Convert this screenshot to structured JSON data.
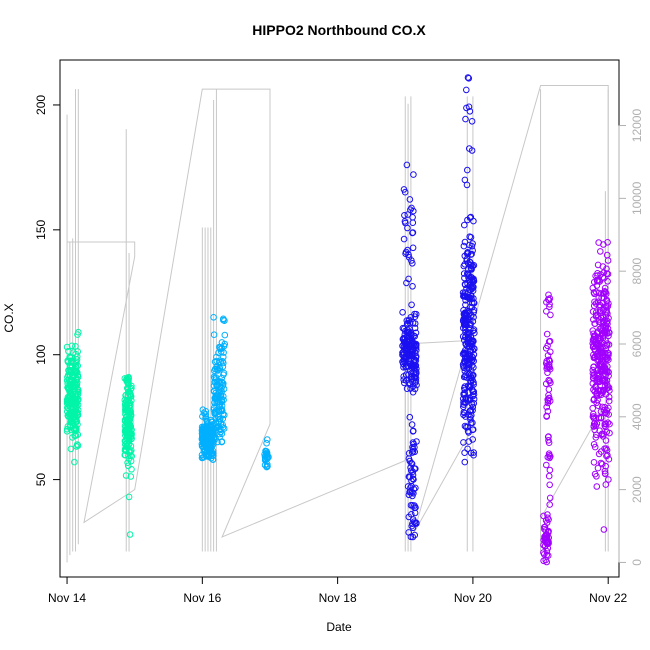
{
  "chart_data": {
    "type": "scatter",
    "title": "HIPPO2 Northbound CO.X",
    "xlabel": "Date",
    "ylabel": "CO.X",
    "x_axis": {
      "type": "date",
      "range": [
        "2009-11-13 21:30",
        "2009-11-22 03:50"
      ],
      "ticks": [
        {
          "at": "2009-11-14",
          "label": "Nov 14"
        },
        {
          "at": "2009-11-16",
          "label": "Nov 16"
        },
        {
          "at": "2009-11-18",
          "label": "Nov 18"
        },
        {
          "at": "2009-11-20",
          "label": "Nov 20"
        },
        {
          "at": "2009-11-22",
          "label": "Nov 22"
        }
      ]
    },
    "y_axis": {
      "range": [
        11,
        218
      ],
      "ticks": [
        50,
        100,
        150,
        200
      ]
    },
    "y2_axis": {
      "color": "#b0b0b0",
      "range": [
        -400,
        13800
      ],
      "ticks": [
        0,
        2000,
        4000,
        6000,
        8000,
        10000,
        12000
      ]
    },
    "grid": false,
    "legend": "none",
    "series": [
      {
        "color": "#00f5a8",
        "clusters": [
          {
            "x_start": "2009-11-14 00:00",
            "x_end": "2009-11-14 04:00",
            "y_min": 57,
            "y_max": 109,
            "y_center": 84,
            "spread": 9,
            "n": 220
          },
          {
            "x_start": "2009-11-14 20:30",
            "x_end": "2009-11-14 23:00",
            "y_min": 28,
            "y_max": 91,
            "y_center": 72,
            "spread": 10,
            "n": 160
          }
        ]
      },
      {
        "color": "#00b0ff",
        "clusters": [
          {
            "x_start": "2009-11-15 23:50",
            "x_end": "2009-11-16 04:00",
            "y_min": 58,
            "y_max": 78,
            "y_center": 66,
            "spread": 4,
            "n": 170
          },
          {
            "x_start": "2009-11-16 04:00",
            "x_end": "2009-11-16 08:00",
            "y_min": 65,
            "y_max": 115,
            "y_center": 85,
            "spread": 12,
            "n": 130
          },
          {
            "x_start": "2009-11-16 22:00",
            "x_end": "2009-11-16 23:30",
            "y_min": 55,
            "y_max": 66,
            "y_center": 59,
            "spread": 2,
            "n": 25
          }
        ]
      },
      {
        "color": "#1a10f0",
        "clusters": [
          {
            "x_start": "2009-11-18 23:00",
            "x_end": "2009-11-19 04:00",
            "y_min": 85,
            "y_max": 117,
            "y_center": 100,
            "spread": 8,
            "n": 170
          },
          {
            "x_start": "2009-11-18 23:30",
            "x_end": "2009-11-19 03:00",
            "y_min": 120,
            "y_max": 176,
            "y_center": 150,
            "spread": 12,
            "n": 30
          },
          {
            "x_start": "2009-11-19 01:00",
            "x_end": "2009-11-19 04:00",
            "y_min": 27,
            "y_max": 75,
            "y_center": 50,
            "spread": 12,
            "n": 60
          },
          {
            "x_start": "2009-11-19 20:30",
            "x_end": "2009-11-20 00:30",
            "y_min": 57,
            "y_max": 168,
            "y_center": 105,
            "spread": 22,
            "n": 300
          },
          {
            "x_start": "2009-11-19 21:00",
            "x_end": "2009-11-20 00:00",
            "y_min": 170,
            "y_max": 211,
            "y_center": 190,
            "spread": 10,
            "n": 12
          }
        ]
      },
      {
        "color": "#a100ff",
        "clusters": [
          {
            "x_start": "2009-11-21 01:00",
            "x_end": "2009-11-21 03:00",
            "y_min": 17,
            "y_max": 36,
            "y_center": 26,
            "spread": 5,
            "n": 45
          },
          {
            "x_start": "2009-11-21 02:00",
            "x_end": "2009-11-21 03:30",
            "y_min": 40,
            "y_max": 124,
            "y_center": 85,
            "spread": 22,
            "n": 60
          },
          {
            "x_start": "2009-11-21 18:30",
            "x_end": "2009-11-22 00:30",
            "y_min": 30,
            "y_max": 145,
            "y_center": 100,
            "spread": 20,
            "n": 330
          }
        ]
      }
    ],
    "background_series": {
      "color": "#c8c8c8",
      "axis": "y2",
      "path": [
        {
          "x": "2009-11-14 00:00",
          "y": 8800
        },
        {
          "x": "2009-11-15 00:00",
          "y": 8800
        },
        {
          "x": "2009-11-15 00:00",
          "y": 8400
        },
        {
          "x": "2009-11-14 06:00",
          "y": 1100
        },
        {
          "x": "2009-11-15 00:00",
          "y": 2000
        },
        {
          "x": "2009-11-16 00:00",
          "y": 13000
        },
        {
          "x": "2009-11-17 00:00",
          "y": 13000
        },
        {
          "x": "2009-11-17 00:00",
          "y": 3800
        },
        {
          "x": "2009-11-16 07:00",
          "y": 700
        },
        {
          "x": "2009-11-19 00:00",
          "y": 2800
        },
        {
          "x": "2009-11-19 00:00",
          "y": 6000
        },
        {
          "x": "2009-11-20 00:00",
          "y": 6100
        },
        {
          "x": "2009-11-20 00:00",
          "y": 3700
        },
        {
          "x": "2009-11-19 03:00",
          "y": 800
        },
        {
          "x": "2009-11-21 00:00",
          "y": 13100
        },
        {
          "x": "2009-11-22 00:00",
          "y": 13100
        },
        {
          "x": "2009-11-22 00:00",
          "y": 4500
        },
        {
          "x": "2009-11-21 00:00",
          "y": 1200
        },
        {
          "x": "2009-11-22 00:00",
          "y": 4500
        }
      ],
      "spikes": [
        {
          "x": "2009-11-14 00:00",
          "y_min": 0,
          "y_max": 12300
        },
        {
          "x": "2009-11-14 01:00",
          "y_min": 200,
          "y_max": 8800
        },
        {
          "x": "2009-11-14 02:00",
          "y_min": 300,
          "y_max": 8900
        },
        {
          "x": "2009-11-14 03:00",
          "y_min": 300,
          "y_max": 13000
        },
        {
          "x": "2009-11-14 04:00",
          "y_min": 500,
          "y_max": 13000
        },
        {
          "x": "2009-11-14 21:00",
          "y_min": 300,
          "y_max": 11900
        },
        {
          "x": "2009-11-14 22:00",
          "y_min": 300,
          "y_max": 8500
        },
        {
          "x": "2009-11-16 00:00",
          "y_min": 300,
          "y_max": 9200
        },
        {
          "x": "2009-11-16 01:00",
          "y_min": 300,
          "y_max": 9200
        },
        {
          "x": "2009-11-16 02:00",
          "y_min": 300,
          "y_max": 9200
        },
        {
          "x": "2009-11-16 03:00",
          "y_min": 300,
          "y_max": 9200
        },
        {
          "x": "2009-11-16 04:00",
          "y_min": 300,
          "y_max": 12700
        },
        {
          "x": "2009-11-16 05:00",
          "y_min": 300,
          "y_max": 13000
        },
        {
          "x": "2009-11-19 00:00",
          "y_min": 300,
          "y_max": 12800
        },
        {
          "x": "2009-11-19 01:00",
          "y_min": 300,
          "y_max": 12600
        },
        {
          "x": "2009-11-19 02:00",
          "y_min": 300,
          "y_max": 12800
        },
        {
          "x": "2009-11-19 22:00",
          "y_min": 300,
          "y_max": 12800
        },
        {
          "x": "2009-11-20 00:00",
          "y_min": 300,
          "y_max": 12800
        },
        {
          "x": "2009-11-21 00:00",
          "y_min": 300,
          "y_max": 13000
        },
        {
          "x": "2009-11-21 23:00",
          "y_min": 300,
          "y_max": 10200
        },
        {
          "x": "2009-11-22 00:00",
          "y_min": 300,
          "y_max": 13000
        }
      ]
    }
  }
}
